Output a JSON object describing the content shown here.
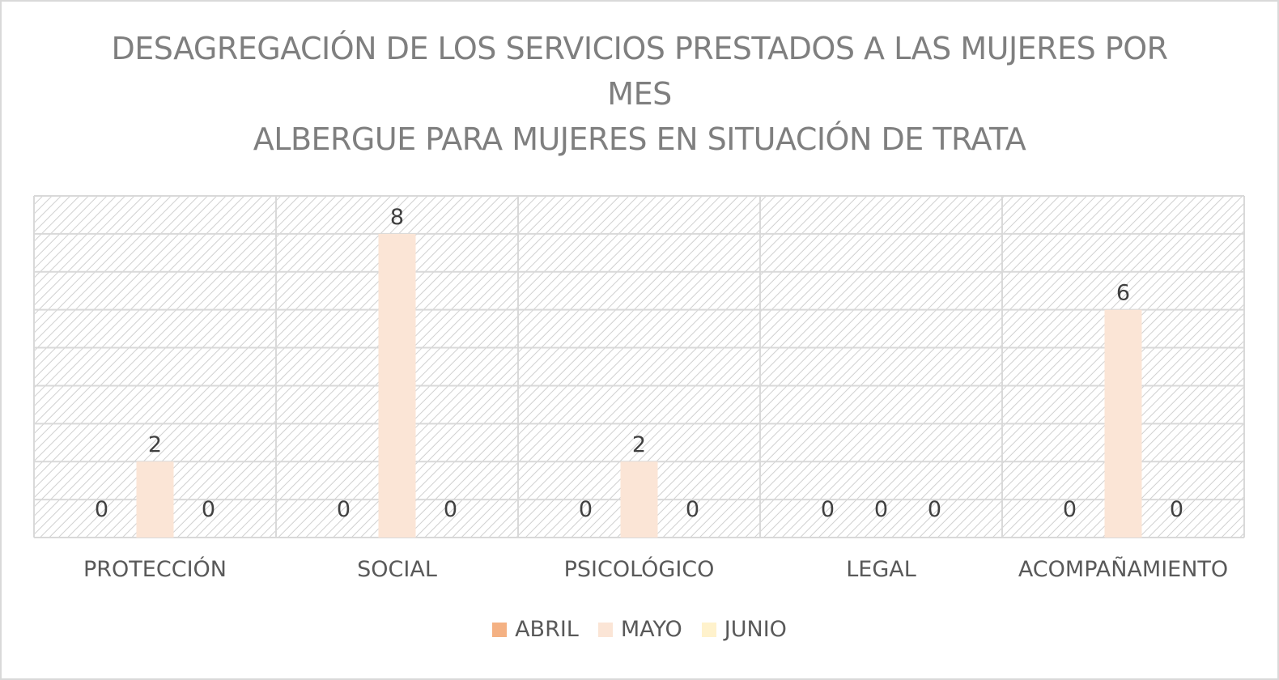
{
  "chart_data": {
    "type": "bar",
    "title_lines": [
      "DESAGREGACIÓN DE LOS SERVICIOS PRESTADOS A LAS MUJERES POR",
      "MES",
      "ALBERGUE PARA MUJERES EN SITUACIÓN DE TRATA"
    ],
    "categories": [
      "PROTECCIÓN",
      "SOCIAL",
      "PSICOLÓGICO",
      "LEGAL",
      "ACOMPAÑAMIENTO"
    ],
    "series": [
      {
        "name": "ABRIL",
        "values": [
          0,
          0,
          0,
          0,
          0
        ],
        "color": "#f4b183"
      },
      {
        "name": "MAYO",
        "values": [
          2,
          8,
          2,
          0,
          6
        ],
        "color": "#fbe5d6"
      },
      {
        "name": "JUNIO",
        "values": [
          0,
          0,
          0,
          0,
          0
        ],
        "color": "#fff2cc"
      }
    ],
    "ylim": [
      0,
      9
    ],
    "grid": true,
    "legend_position": "bottom",
    "xlabel": "",
    "ylabel": ""
  }
}
